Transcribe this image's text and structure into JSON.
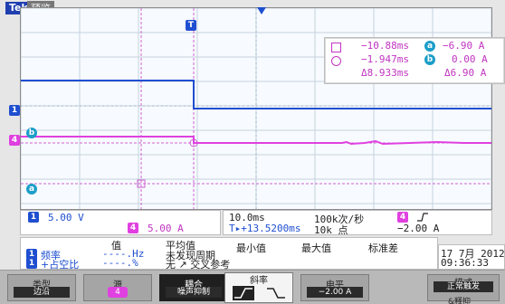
{
  "header": {
    "brand": "Tek",
    "mode": "预览"
  },
  "trigger_marker": "T",
  "cursor_readout": {
    "row1_time": "−10.88ms",
    "row1_value": "−6.90 A",
    "row2_time": "−1.947ms",
    "row2_value": "0.00 A",
    "row3_delta_time": "Δ8.933ms",
    "row3_delta_value": "Δ6.90 A",
    "badge_a": "a",
    "badge_b": "b"
  },
  "channel_markers": {
    "ch1": "1",
    "ch4": "4",
    "marker_b": "b",
    "marker_a": "a"
  },
  "status": {
    "ch1_scale": "5.00 V",
    "ch4_scale": "5.00 A",
    "timebase": "10.0ms",
    "sample_rate": "100k次/秒",
    "record_length": "10k 点",
    "trigger_level": "−2.00 A",
    "trigger_pos": "T▸+13.5200ms",
    "trigger_source": "4"
  },
  "measurements": {
    "headers": [
      "值",
      "平均值",
      "最小值",
      "最大值",
      "标准差"
    ],
    "row1_label": "频率",
    "row1_value": "----.Hz",
    "row1_note": "未发现周期",
    "row2_label": "+占空比",
    "row2_value": "----.%",
    "row2_note": "无 ↗ 交叉参考",
    "badge1": "1",
    "badge2": "1"
  },
  "datetime": {
    "date": "17 7月 2012",
    "time": "09:36:33"
  },
  "bottom_buttons": [
    {
      "label": "类型",
      "value": "边沿"
    },
    {
      "label": "源",
      "value": "4"
    },
    {
      "label": "耦合",
      "value": "噪声抑制"
    },
    {
      "label": "斜率",
      "value": ""
    },
    {
      "label": "电平",
      "value": "−2.00 A"
    },
    {
      "label": "模式",
      "value": "正常触发"
    }
  ],
  "bottom_extra": "&释抑",
  "colors": {
    "ch1": "#1f4fd0",
    "ch4": "#e040e0",
    "grid": "#b9c6d4",
    "cursor": "#d060d0"
  }
}
